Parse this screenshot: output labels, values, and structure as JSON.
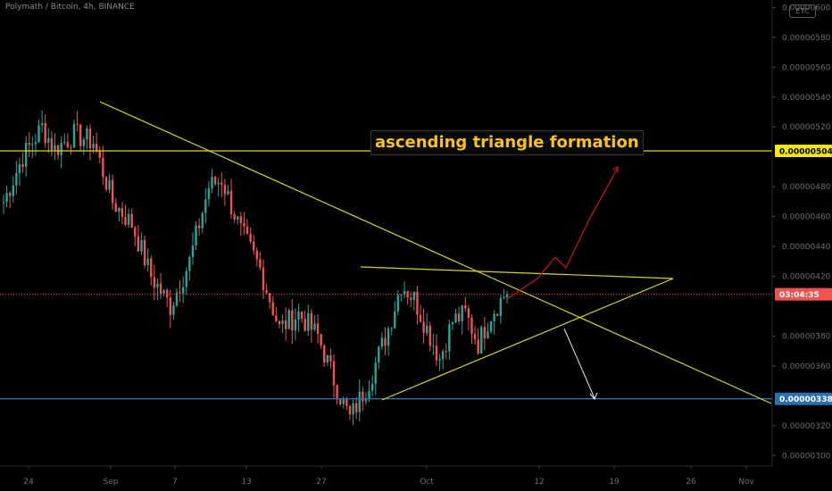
{
  "header": {
    "symbol_title": "Polymath / Bitcoin, 4h, BINANCE",
    "scale_button": "ETC"
  },
  "annotation": {
    "text": "ascending triangle formation"
  },
  "colors": {
    "background": "#000000",
    "up_candle": "#26a69a",
    "down_candle": "#ef5350",
    "trendline": "#d6d627",
    "resistance_line": "#d6d627",
    "support_line": "#2a6fb0",
    "bull_arrow": "#c0141c",
    "bear_arrow": "#e6e6e6",
    "price_line": "#ef5350",
    "annotation_text": "#f7c120"
  },
  "chart_data": {
    "type": "candlestick",
    "title": "Polymath / Bitcoin, 4h, BINANCE",
    "x_axis": {
      "ticks": [
        "24",
        "Sep",
        "7",
        "13",
        "27",
        "Oct",
        "12",
        "19",
        "26",
        "Nov"
      ]
    },
    "y_axis": {
      "position": "right",
      "ylim": [
        2.93e-06,
        6.05e-06
      ],
      "ticks": [
        "0.00000600",
        "0.00000580",
        "0.00000560",
        "0.00000540",
        "0.00000520",
        "0.00000480",
        "0.00000460",
        "0.00000440",
        "0.00000420",
        "0.00000380",
        "0.00000360",
        "0.00000320",
        "0.00000300"
      ]
    },
    "price_labels": [
      {
        "text": "0.00000504",
        "value": 5.04e-06,
        "style": "resistance"
      },
      {
        "text": "03:04:35",
        "value": 4.08e-06,
        "style": "countdown"
      },
      {
        "text": "0.00000338",
        "value": 3.38e-06,
        "style": "support"
      }
    ],
    "horizontal_lines": [
      {
        "name": "resistance",
        "value": 5.04e-06
      },
      {
        "name": "support",
        "value": 3.38e-06
      }
    ],
    "waypoints": [
      [
        0,
        4.7e-06
      ],
      [
        6,
        5e-06
      ],
      [
        12,
        5.2e-06
      ],
      [
        16,
        5.05e-06
      ],
      [
        22,
        5.15e-06
      ],
      [
        28,
        5.1e-06
      ],
      [
        34,
        4.7e-06
      ],
      [
        40,
        4.55e-06
      ],
      [
        46,
        4.2e-06
      ],
      [
        52,
        4e-06
      ],
      [
        58,
        4.3e-06
      ],
      [
        64,
        4.8e-06
      ],
      [
        68,
        4.85e-06
      ],
      [
        74,
        4.5e-06
      ],
      [
        80,
        4.25e-06
      ],
      [
        86,
        3.85e-06
      ],
      [
        92,
        3.95e-06
      ],
      [
        98,
        3.8e-06
      ],
      [
        104,
        3.45e-06
      ],
      [
        108,
        3.25e-06
      ],
      [
        114,
        3.5e-06
      ],
      [
        120,
        3.85e-06
      ],
      [
        124,
        4.15e-06
      ],
      [
        128,
        4.05e-06
      ],
      [
        132,
        3.85e-06
      ],
      [
        136,
        3.65e-06
      ],
      [
        140,
        3.9e-06
      ],
      [
        144,
        3.95e-06
      ],
      [
        148,
        3.75e-06
      ],
      [
        152,
        3.95e-06
      ],
      [
        157,
        4.1e-06
      ]
    ]
  }
}
